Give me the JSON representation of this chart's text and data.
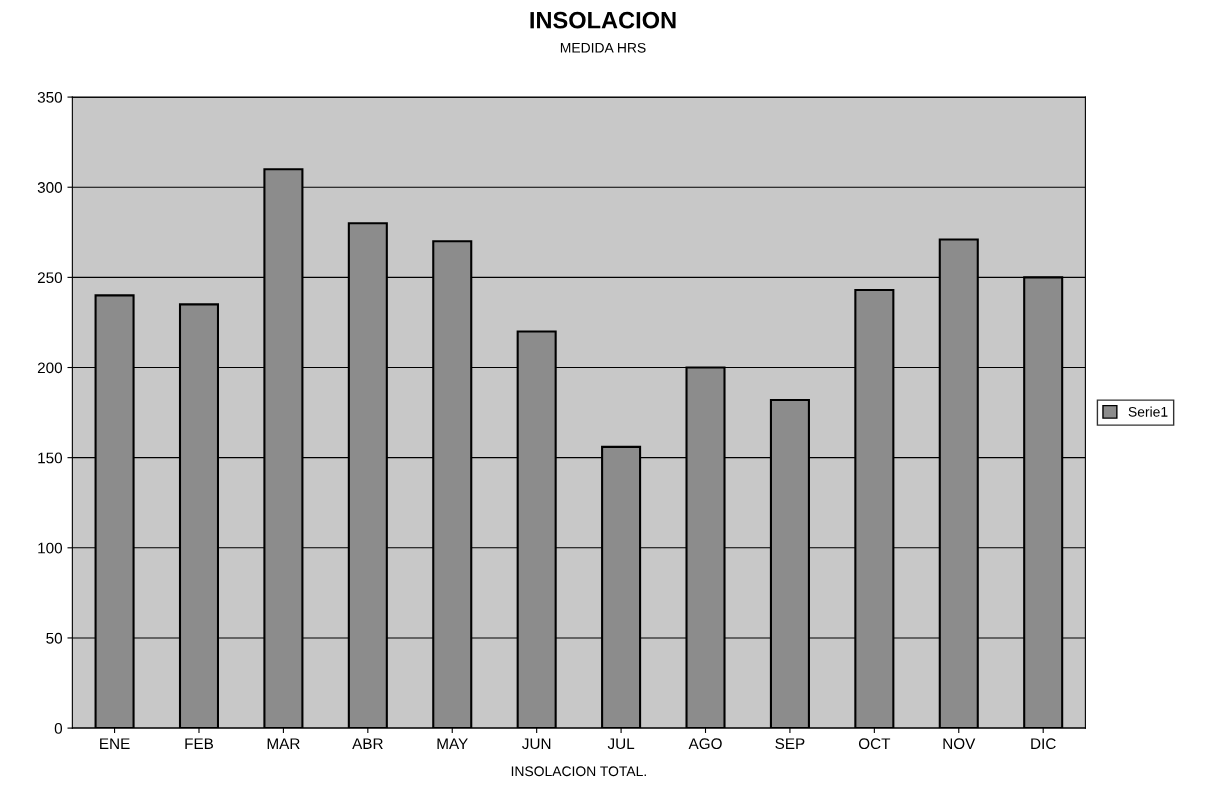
{
  "chart_data": {
    "type": "bar",
    "title": "INSOLACION",
    "subtitle": "MEDIDA HRS",
    "xlabel": "INSOLACION TOTAL.",
    "categories": [
      "ENE",
      "FEB",
      "MAR",
      "ABR",
      "MAY",
      "JUN",
      "JUL",
      "AGO",
      "SEP",
      "OCT",
      "NOV",
      "DIC"
    ],
    "series": [
      {
        "name": "Serie1",
        "color": "#8c8c8c",
        "values": [
          240,
          235,
          310,
          280,
          270,
          220,
          156,
          200,
          182,
          243,
          271,
          250
        ]
      }
    ],
    "ylim": [
      0,
      350
    ],
    "yticks": [
      0,
      50,
      100,
      150,
      200,
      250,
      300,
      350
    ],
    "grid": "y",
    "legend": "right"
  }
}
